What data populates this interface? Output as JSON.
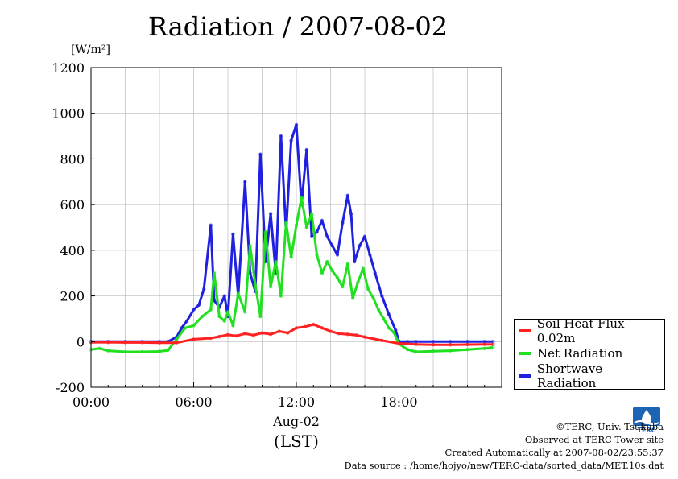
{
  "title": "Radiation / 2007-08-02",
  "unit_label": "[W/m²]",
  "x_caption": "Aug-02",
  "x_unit": "(LST)",
  "credits": [
    "©TERC, Univ. Tsukuba",
    "Observed at TERC Tower site",
    "Created Automatically at 2007-08-02/23:55:37",
    "Data source : /home/hojyo/new/TERC-data/sorted_data/MET.10s.dat"
  ],
  "logo_text": "TERC",
  "chart_data": {
    "type": "line",
    "ylim": [
      -200,
      1200
    ],
    "xlim": [
      0,
      24
    ],
    "yticks": [
      -200,
      0,
      200,
      400,
      600,
      800,
      1000,
      1200
    ],
    "xticks": [
      0,
      6,
      12,
      18
    ],
    "xtick_labels": [
      "00:00",
      "06:00",
      "12:00",
      "18:00"
    ],
    "grid": true,
    "legend_position": "right-bottom",
    "series": [
      {
        "name": "Soil Heat Flux 0.02m",
        "color": "#ff2020",
        "x": [
          0,
          1,
          2,
          3,
          4,
          5,
          6,
          7,
          7.5,
          8,
          8.5,
          9,
          9.5,
          10,
          10.5,
          11,
          11.5,
          12,
          12.5,
          13,
          13.5,
          14,
          14.5,
          15,
          15.5,
          16,
          17,
          18,
          19,
          20,
          21,
          22,
          23,
          23.5
        ],
        "y": [
          -3,
          -3,
          -4,
          -4,
          -5,
          -5,
          10,
          15,
          22,
          30,
          25,
          35,
          28,
          38,
          32,
          45,
          38,
          60,
          65,
          75,
          60,
          45,
          35,
          32,
          28,
          20,
          5,
          -8,
          -12,
          -14,
          -14,
          -13,
          -12,
          -12
        ]
      },
      {
        "name": "Net Radiation",
        "color": "#20e020",
        "x": [
          0,
          0.5,
          1,
          2,
          3,
          4,
          4.5,
          5,
          5.5,
          6,
          6.5,
          7,
          7.2,
          7.5,
          7.8,
          8,
          8.3,
          8.6,
          9,
          9.3,
          9.6,
          9.9,
          10.2,
          10.5,
          10.8,
          11.1,
          11.4,
          11.7,
          12,
          12.3,
          12.6,
          12.9,
          13.2,
          13.5,
          13.8,
          14.1,
          14.4,
          14.7,
          15,
          15.3,
          15.6,
          15.9,
          16.2,
          16.5,
          16.8,
          17.1,
          17.4,
          17.7,
          18,
          18.5,
          19,
          20,
          21,
          22,
          23,
          23.5
        ],
        "y": [
          -35,
          -30,
          -40,
          -45,
          -45,
          -43,
          -38,
          10,
          60,
          70,
          110,
          140,
          300,
          110,
          90,
          130,
          70,
          210,
          130,
          420,
          250,
          110,
          480,
          240,
          350,
          200,
          520,
          370,
          510,
          630,
          500,
          560,
          380,
          300,
          350,
          310,
          280,
          240,
          340,
          190,
          260,
          320,
          230,
          190,
          140,
          100,
          60,
          40,
          -10,
          -35,
          -45,
          -42,
          -40,
          -35,
          -30,
          -25
        ]
      },
      {
        "name": "Shortwave Radiation",
        "color": "#2020e0",
        "x": [
          0,
          1,
          2,
          3,
          4,
          4.5,
          5,
          5.3,
          5.6,
          6,
          6.3,
          6.6,
          7,
          7.2,
          7.5,
          7.8,
          8,
          8.3,
          8.6,
          9,
          9.3,
          9.6,
          9.9,
          10.2,
          10.5,
          10.8,
          11.1,
          11.4,
          11.7,
          12,
          12.3,
          12.6,
          12.9,
          13.2,
          13.5,
          13.8,
          14.1,
          14.4,
          14.7,
          15,
          15.2,
          15.4,
          15.7,
          16,
          16.3,
          16.6,
          17,
          17.4,
          17.8,
          18,
          18.5,
          19,
          20,
          21,
          22,
          23,
          23.5
        ],
        "y": [
          0,
          0,
          0,
          0,
          0,
          0,
          20,
          60,
          90,
          140,
          160,
          230,
          510,
          180,
          150,
          200,
          110,
          470,
          200,
          700,
          300,
          220,
          820,
          350,
          560,
          300,
          900,
          480,
          880,
          950,
          600,
          840,
          460,
          480,
          530,
          460,
          420,
          380,
          520,
          640,
          560,
          350,
          420,
          460,
          380,
          300,
          200,
          120,
          50,
          0,
          0,
          0,
          0,
          0,
          0,
          0,
          0
        ]
      }
    ]
  }
}
